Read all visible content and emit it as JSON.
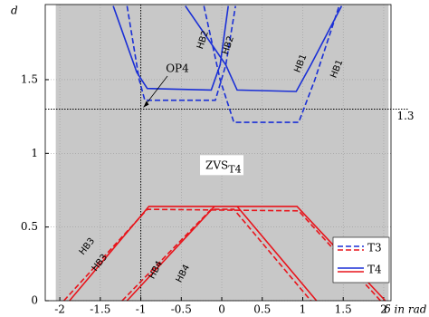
{
  "chart_data": {
    "type": "line",
    "xlabel": "δ in rad",
    "ylabel": "d",
    "xlim": [
      -2.18,
      2.09
    ],
    "ylim": [
      0,
      2.01
    ],
    "xticks": [
      -2,
      -1.5,
      -1,
      -0.5,
      0,
      0.5,
      1,
      1.5,
      2
    ],
    "yticks": [
      0,
      0.5,
      1,
      1.5
    ],
    "grid": true,
    "legend": "lower right",
    "shaded_xrange": [
      -2.05,
      2.06
    ],
    "shade_color": "#c8c8c8",
    "hlines": [
      1.3
    ],
    "vlines": [
      -1
    ],
    "zvs_label": {
      "main": "ZVS",
      "sub": "T4"
    },
    "annotations": [
      "HB1",
      "HB1",
      "HB2",
      "HB2",
      "HB3",
      "HB3",
      "HB4",
      "HB4",
      "OP4"
    ],
    "series": [
      {
        "name": "T3",
        "style": "dashed",
        "curves": [
          {
            "color": "#1a2fd6",
            "x": [
              -1.17,
              -1.02,
              -0.95,
              -0.08,
              0.05,
              0.17,
              null,
              -0.22,
              -0.02,
              0.15,
              0.95,
              1.15,
              1.45
            ],
            "values": [
              2,
              1.5,
              1.36,
              1.36,
              1.6,
              2,
              null,
              2,
              1.5,
              1.21,
              1.21,
              1.5,
              2
            ]
          },
          {
            "color": "#e8141b",
            "x": [
              -1.95,
              -0.92,
              0.95,
              1.96,
              null,
              -1.23,
              -0.13,
              0.15,
              1.1
            ],
            "values": [
              0,
              0.62,
              0.61,
              0,
              null,
              0,
              0.62,
              0.62,
              0
            ]
          }
        ]
      },
      {
        "name": "T4",
        "style": "solid",
        "curves": [
          {
            "color": "#1a2fd6",
            "x": [
              -1.34,
              -1.05,
              -0.92,
              -0.13,
              -0.02,
              0.08,
              null,
              -0.45,
              0.05,
              0.19,
              0.92,
              1.1,
              1.48
            ],
            "values": [
              2,
              1.55,
              1.44,
              1.43,
              1.6,
              2,
              null,
              2,
              1.6,
              1.43,
              1.42,
              1.6,
              2
            ]
          },
          {
            "color": "#e8141b",
            "x": [
              -1.88,
              -0.9,
              0.93,
              2.02,
              null,
              -1.17,
              -0.09,
              0.19,
              1.17
            ],
            "values": [
              0,
              0.64,
              0.64,
              0,
              null,
              0,
              0.64,
              0.64,
              0
            ]
          }
        ]
      }
    ]
  }
}
